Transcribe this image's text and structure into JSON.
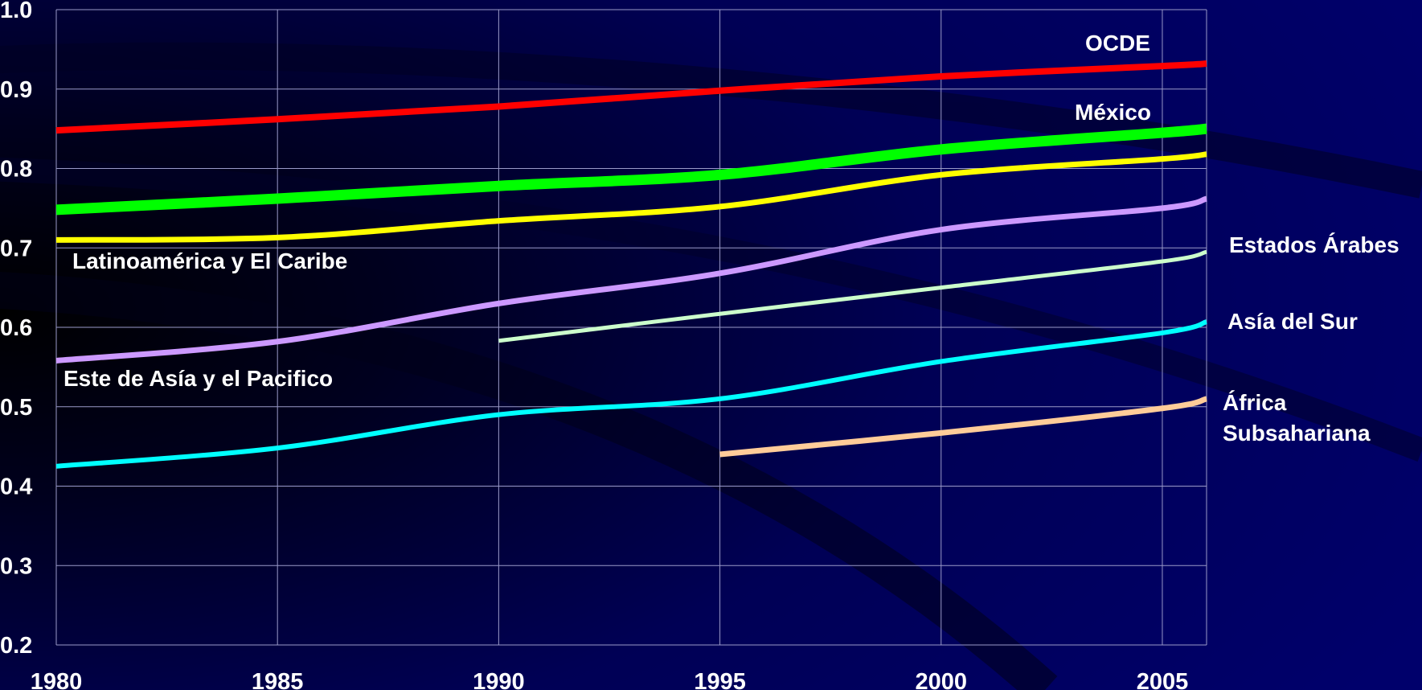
{
  "chart_data": {
    "type": "line",
    "title": "",
    "xlabel": "",
    "ylabel": "",
    "xlim": [
      1980,
      2006
    ],
    "ylim": [
      0.2,
      1.0
    ],
    "x_ticks": [
      "1980",
      "1985",
      "1990",
      "1995",
      "2000",
      "2005"
    ],
    "y_ticks": [
      "0.2",
      "0.3",
      "0.4",
      "0.5",
      "0.6",
      "0.7",
      "0.8",
      "0.9",
      "1.0"
    ],
    "grid": true,
    "background_color": "#000066",
    "grid_color": "#9a9ac8",
    "series": [
      {
        "name": "OCDE",
        "color": "#ff0000",
        "x": [
          1980,
          1985,
          1990,
          1995,
          2000,
          2005,
          2006
        ],
        "y": [
          0.848,
          0.862,
          0.878,
          0.898,
          0.916,
          0.929,
          0.932
        ]
      },
      {
        "name": "México",
        "color": "#00ff00",
        "x": [
          1980,
          1985,
          1990,
          1995,
          2000,
          2005,
          2006
        ],
        "y": [
          0.748,
          0.762,
          0.778,
          0.792,
          0.824,
          0.845,
          0.85
        ]
      },
      {
        "name": "Latinoamérica y El Caribe",
        "color": "#ffff00",
        "x": [
          1980,
          1985,
          1990,
          1995,
          2000,
          2005,
          2006
        ],
        "y": [
          0.71,
          0.713,
          0.734,
          0.752,
          0.792,
          0.812,
          0.818
        ]
      },
      {
        "name": "Este de Asía y el Pacifico",
        "color": "#cc99ff",
        "x": [
          1980,
          1985,
          1990,
          1995,
          2000,
          2005,
          2006
        ],
        "y": [
          0.558,
          0.582,
          0.63,
          0.668,
          0.723,
          0.75,
          0.762
        ]
      },
      {
        "name": "Estados Árabes",
        "color": "#ccffcc",
        "x": [
          1990,
          1995,
          2000,
          2005,
          2006
        ],
        "y": [
          0.583,
          0.617,
          0.65,
          0.683,
          0.695
        ]
      },
      {
        "name": "Asía del Sur",
        "color": "#00ffff",
        "x": [
          1980,
          1985,
          1990,
          1995,
          2000,
          2005,
          2006
        ],
        "y": [
          0.425,
          0.448,
          0.49,
          0.51,
          0.557,
          0.593,
          0.607
        ]
      },
      {
        "name": "África Subsahariana",
        "color": "#ffcc99",
        "x": [
          1995,
          2000,
          2005,
          2006
        ],
        "y": [
          0.44,
          0.467,
          0.498,
          0.51
        ]
      }
    ],
    "series_labels": [
      {
        "lines": [
          "OCDE"
        ]
      },
      {
        "lines": [
          "México"
        ]
      },
      {
        "lines": [
          "Latinoamérica y El Caribe"
        ]
      },
      {
        "lines": [
          "Este de Asía y el Pacifico"
        ]
      },
      {
        "lines": [
          "Estados Árabes"
        ]
      },
      {
        "lines": [
          "Asía del Sur"
        ]
      },
      {
        "lines": [
          "África",
          "Subsahariana"
        ]
      }
    ]
  }
}
